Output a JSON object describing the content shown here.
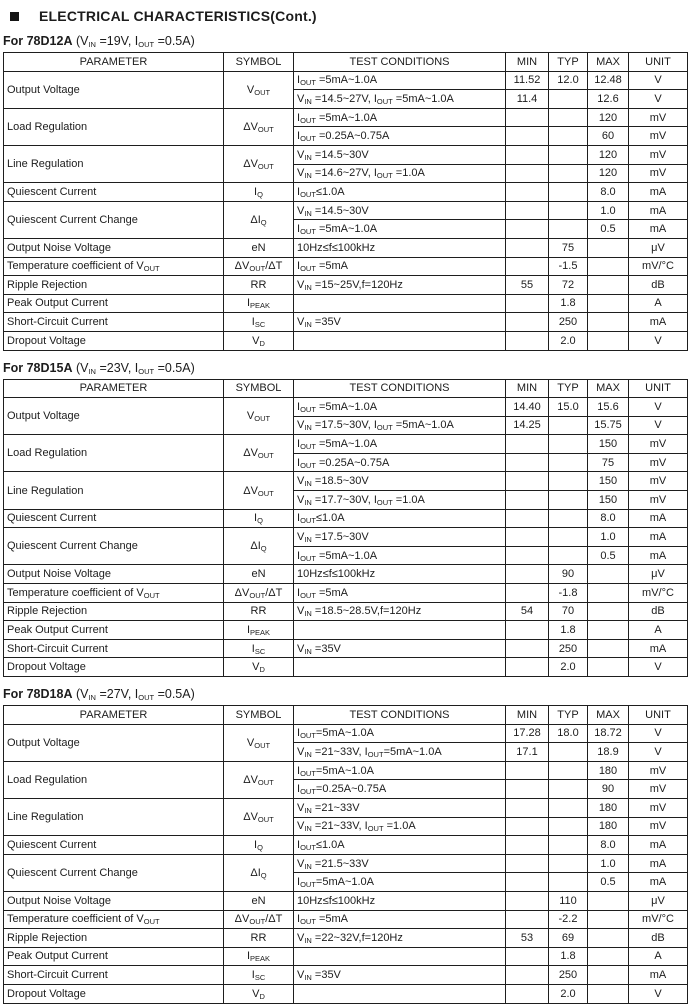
{
  "page": {
    "bullet": "■",
    "section_title": "ELECTRICAL CHARACTERISTICS(Cont.)"
  },
  "columns": [
    "PARAMETER",
    "SYMBOL",
    "TEST CONDITIONS",
    "MIN",
    "TYP",
    "MAX",
    "UNIT"
  ],
  "tables": [
    {
      "label": "For 78D12A",
      "conditions": "(V_IN_ =19V, I_OUT_ =0.5A)",
      "groups": [
        {
          "parameter": "Output Voltage",
          "symbol": "V_OUT_",
          "rows": [
            {
              "cond": "I_OUT_ =5mA~1.0A",
              "min": "11.52",
              "typ": "12.0",
              "max": "12.48",
              "unit": "V"
            },
            {
              "cond": "V_IN_ =14.5~27V, I_OUT_ =5mA~1.0A",
              "min": "11.4",
              "typ": "",
              "max": "12.6",
              "unit": "V"
            }
          ]
        },
        {
          "parameter": "Load Regulation",
          "symbol": "ΔV_OUT_",
          "rows": [
            {
              "cond": "I_OUT_ =5mA~1.0A",
              "min": "",
              "typ": "",
              "max": "120",
              "unit": "mV"
            },
            {
              "cond": "I_OUT_ =0.25A~0.75A",
              "min": "",
              "typ": "",
              "max": "60",
              "unit": "mV"
            }
          ]
        },
        {
          "parameter": "Line Regulation",
          "symbol": "ΔV_OUT_",
          "rows": [
            {
              "cond": "V_IN_ =14.5~30V",
              "min": "",
              "typ": "",
              "max": "120",
              "unit": "mV"
            },
            {
              "cond": "V_IN_ =14.6~27V, I_OUT_ =1.0A",
              "min": "",
              "typ": "",
              "max": "120",
              "unit": "mV"
            }
          ]
        },
        {
          "parameter": "Quiescent Current",
          "symbol": "I_Q_",
          "rows": [
            {
              "cond": "I_OUT_≤1.0A",
              "min": "",
              "typ": "",
              "max": "8.0",
              "unit": "mA"
            }
          ]
        },
        {
          "parameter": "Quiescent Current Change",
          "symbol": "ΔI_Q_",
          "rows": [
            {
              "cond": "V_IN_ =14.5~30V",
              "min": "",
              "typ": "",
              "max": "1.0",
              "unit": "mA"
            },
            {
              "cond": "I_OUT_ =5mA~1.0A",
              "min": "",
              "typ": "",
              "max": "0.5",
              "unit": "mA"
            }
          ]
        },
        {
          "parameter": "Output Noise Voltage",
          "symbol": "eN",
          "rows": [
            {
              "cond": "10Hz≤f≤100kHz",
              "min": "",
              "typ": "75",
              "max": "",
              "unit": "μV"
            }
          ]
        },
        {
          "parameter": "Temperature coefficient of V_OUT_",
          "symbol": "ΔV_OUT_/ΔT",
          "rows": [
            {
              "cond": "I_OUT_ =5mA",
              "min": "",
              "typ": "-1.5",
              "max": "",
              "unit": "mV/°C"
            }
          ]
        },
        {
          "parameter": "Ripple Rejection",
          "symbol": "RR",
          "rows": [
            {
              "cond": "V_IN_ =15~25V,f=120Hz",
              "min": "55",
              "typ": "72",
              "max": "",
              "unit": "dB"
            }
          ]
        },
        {
          "parameter": "Peak Output Current",
          "symbol": "I_PEAK_",
          "rows": [
            {
              "cond": "",
              "min": "",
              "typ": "1.8",
              "max": "",
              "unit": "A"
            }
          ]
        },
        {
          "parameter": "Short-Circuit Current",
          "symbol": "I_SC_",
          "rows": [
            {
              "cond": "V_IN_ =35V",
              "min": "",
              "typ": "250",
              "max": "",
              "unit": "mA"
            }
          ]
        },
        {
          "parameter": "Dropout Voltage",
          "symbol": "V_D_",
          "rows": [
            {
              "cond": "",
              "min": "",
              "typ": "2.0",
              "max": "",
              "unit": "V"
            }
          ]
        }
      ]
    },
    {
      "label": "For 78D15A",
      "conditions": "(V_IN_ =23V, I_OUT_ =0.5A)",
      "groups": [
        {
          "parameter": "Output Voltage",
          "symbol": "V_OUT_",
          "rows": [
            {
              "cond": "I_OUT_ =5mA~1.0A",
              "min": "14.40",
              "typ": "15.0",
              "max": "15.6",
              "unit": "V"
            },
            {
              "cond": "V_IN_ =17.5~30V, I_OUT_ =5mA~1.0A",
              "min": "14.25",
              "typ": "",
              "max": "15.75",
              "unit": "V"
            }
          ]
        },
        {
          "parameter": "Load Regulation",
          "symbol": "ΔV_OUT_",
          "rows": [
            {
              "cond": "I_OUT_ =5mA~1.0A",
              "min": "",
              "typ": "",
              "max": "150",
              "unit": "mV"
            },
            {
              "cond": "I_OUT_ =0.25A~0.75A",
              "min": "",
              "typ": "",
              "max": "75",
              "unit": "mV"
            }
          ]
        },
        {
          "parameter": "Line Regulation",
          "symbol": "ΔV_OUT_",
          "rows": [
            {
              "cond": "V_IN_ =18.5~30V",
              "min": "",
              "typ": "",
              "max": "150",
              "unit": "mV"
            },
            {
              "cond": "V_IN_ =17.7~30V, I_OUT_ =1.0A",
              "min": "",
              "typ": "",
              "max": "150",
              "unit": "mV"
            }
          ]
        },
        {
          "parameter": "Quiescent Current",
          "symbol": "I_Q_",
          "rows": [
            {
              "cond": "I_OUT_≤1.0A",
              "min": "",
              "typ": "",
              "max": "8.0",
              "unit": "mA"
            }
          ]
        },
        {
          "parameter": "Quiescent Current Change",
          "symbol": "ΔI_Q_",
          "rows": [
            {
              "cond": "V_IN_ =17.5~30V",
              "min": "",
              "typ": "",
              "max": "1.0",
              "unit": "mA"
            },
            {
              "cond": "I_OUT_ =5mA~1.0A",
              "min": "",
              "typ": "",
              "max": "0.5",
              "unit": "mA"
            }
          ]
        },
        {
          "parameter": "Output Noise Voltage",
          "symbol": "eN",
          "rows": [
            {
              "cond": "10Hz≤f≤100kHz",
              "min": "",
              "typ": "90",
              "max": "",
              "unit": "μV"
            }
          ]
        },
        {
          "parameter": "Temperature coefficient of V_OUT_",
          "symbol": "ΔV_OUT_/ΔT",
          "rows": [
            {
              "cond": "I_OUT_ =5mA",
              "min": "",
              "typ": "-1.8",
              "max": "",
              "unit": "mV/°C"
            }
          ]
        },
        {
          "parameter": "Ripple Rejection",
          "symbol": "RR",
          "rows": [
            {
              "cond": "V_IN_ =18.5~28.5V,f=120Hz",
              "min": "54",
              "typ": "70",
              "max": "",
              "unit": "dB"
            }
          ]
        },
        {
          "parameter": "Peak Output Current",
          "symbol": "I_PEAK_",
          "rows": [
            {
              "cond": "",
              "min": "",
              "typ": "1.8",
              "max": "",
              "unit": "A"
            }
          ]
        },
        {
          "parameter": "Short-Circuit Current",
          "symbol": "I_SC_",
          "rows": [
            {
              "cond": "V_IN_ =35V",
              "min": "",
              "typ": "250",
              "max": "",
              "unit": "mA"
            }
          ]
        },
        {
          "parameter": "Dropout Voltage",
          "symbol": "V_D_",
          "rows": [
            {
              "cond": "",
              "min": "",
              "typ": "2.0",
              "max": "",
              "unit": "V"
            }
          ]
        }
      ]
    },
    {
      "label": "For 78D18A",
      "conditions": "(V_IN_ =27V, I_OUT_ =0.5A)",
      "groups": [
        {
          "parameter": "Output Voltage",
          "symbol": "V_OUT_",
          "rows": [
            {
              "cond": "I_OUT_=5mA~1.0A",
              "min": "17.28",
              "typ": "18.0",
              "max": "18.72",
              "unit": "V"
            },
            {
              "cond": "V_IN_ =21~33V, I_OUT_=5mA~1.0A",
              "min": "17.1",
              "typ": "",
              "max": "18.9",
              "unit": "V"
            }
          ]
        },
        {
          "parameter": "Load Regulation",
          "symbol": "ΔV_OUT_",
          "rows": [
            {
              "cond": "I_OUT_=5mA~1.0A",
              "min": "",
              "typ": "",
              "max": "180",
              "unit": "mV"
            },
            {
              "cond": "I_OUT_=0.25A~0.75A",
              "min": "",
              "typ": "",
              "max": "90",
              "unit": "mV"
            }
          ]
        },
        {
          "parameter": "Line Regulation",
          "symbol": "ΔV_OUT_",
          "rows": [
            {
              "cond": "V_IN_ =21~33V",
              "min": "",
              "typ": "",
              "max": "180",
              "unit": "mV"
            },
            {
              "cond": "V_IN_ =21~33V, I_OUT_ =1.0A",
              "min": "",
              "typ": "",
              "max": "180",
              "unit": "mV"
            }
          ]
        },
        {
          "parameter": "Quiescent Current",
          "symbol": "I_Q_",
          "rows": [
            {
              "cond": "I_OUT_≤1.0A",
              "min": "",
              "typ": "",
              "max": "8.0",
              "unit": "mA"
            }
          ]
        },
        {
          "parameter": "Quiescent Current Change",
          "symbol": "ΔI_Q_",
          "rows": [
            {
              "cond": "V_IN_ =21.5~33V",
              "min": "",
              "typ": "",
              "max": "1.0",
              "unit": "mA"
            },
            {
              "cond": "I_OUT_=5mA~1.0A",
              "min": "",
              "typ": "",
              "max": "0.5",
              "unit": "mA"
            }
          ]
        },
        {
          "parameter": "Output Noise Voltage",
          "symbol": "eN",
          "rows": [
            {
              "cond": "10Hz≤f≤100kHz",
              "min": "",
              "typ": "110",
              "max": "",
              "unit": "μV"
            }
          ]
        },
        {
          "parameter": "Temperature coefficient of V_OUT_",
          "symbol": "ΔV_OUT_/ΔT",
          "rows": [
            {
              "cond": "I_OUT_ =5mA",
              "min": "",
              "typ": "-2.2",
              "max": "",
              "unit": "mV/°C"
            }
          ]
        },
        {
          "parameter": "Ripple Rejection",
          "symbol": "RR",
          "rows": [
            {
              "cond": "V_IN_ =22~32V,f=120Hz",
              "min": "53",
              "typ": "69",
              "max": "",
              "unit": "dB"
            }
          ]
        },
        {
          "parameter": "Peak Output Current",
          "symbol": "I_PEAK_",
          "rows": [
            {
              "cond": "",
              "min": "",
              "typ": "1.8",
              "max": "",
              "unit": "A"
            }
          ]
        },
        {
          "parameter": "Short-Circuit Current",
          "symbol": "I_SC_",
          "rows": [
            {
              "cond": "V_IN_ =35V",
              "min": "",
              "typ": "250",
              "max": "",
              "unit": "mA"
            }
          ]
        },
        {
          "parameter": "Dropout Voltage",
          "symbol": "V_D_",
          "rows": [
            {
              "cond": "",
              "min": "",
              "typ": "2.0",
              "max": "",
              "unit": "V"
            }
          ]
        }
      ]
    }
  ]
}
